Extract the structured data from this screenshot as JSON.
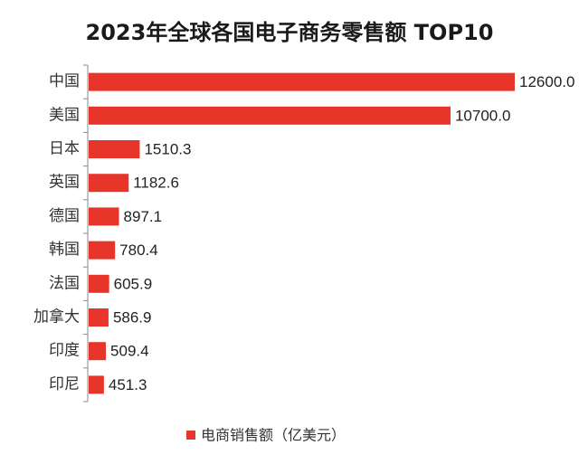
{
  "chart_data": {
    "type": "bar",
    "orientation": "horizontal",
    "title": "2023年全球各国电子商务零售额 TOP10",
    "categories": [
      "中国",
      "美国",
      "日本",
      "英国",
      "德国",
      "韩国",
      "法国",
      "加拿大",
      "印度",
      "印尼"
    ],
    "series": [
      {
        "name": "电商销售额（亿美元）",
        "values": [
          12600.0,
          10700.0,
          1510.3,
          1182.6,
          897.1,
          780.4,
          605.9,
          586.9,
          509.4,
          451.3
        ],
        "color": "#e8352c"
      }
    ],
    "xlim": [
      0,
      12600
    ],
    "legend_position": "bottom",
    "grid": false
  }
}
